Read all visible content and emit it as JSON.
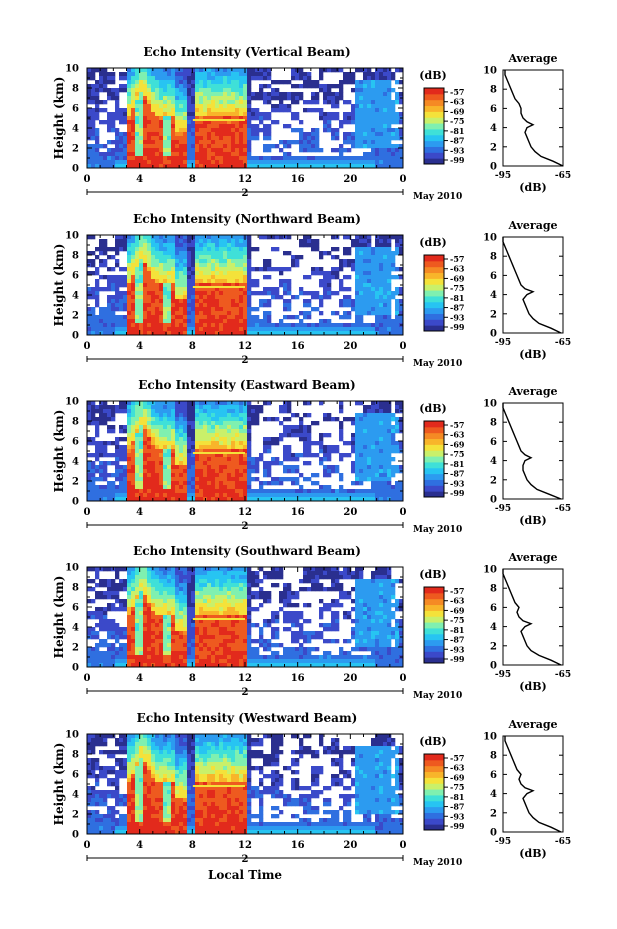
{
  "figure": {
    "xlabel": "Local Time",
    "date_label": "May 2010",
    "day_label": "2",
    "colorbar_unit": "(dB)",
    "colorbar_ticks": [
      "-57",
      "-63",
      "-69",
      "-75",
      "-81",
      "-87",
      "-93",
      "-99"
    ],
    "colormap": [
      "#2a2f8f",
      "#3b49c9",
      "#2f6fe0",
      "#2c9bf0",
      "#27c4f2",
      "#3fe0d8",
      "#7ff0b0",
      "#c9f06a",
      "#f4e23a",
      "#f8b52a",
      "#f58a24",
      "#ee5a1f",
      "#e22a1c"
    ]
  },
  "chart_data": [
    {
      "type": "heatmap",
      "title": "Echo Intensity (Vertical Beam)",
      "xlabel": "Local Time",
      "ylabel": "Height (km)",
      "xlim": [
        0,
        24
      ],
      "ylim": [
        0,
        10
      ],
      "x_ticks": [
        "0",
        "4",
        "8",
        "12",
        "16",
        "20",
        "0"
      ],
      "y_ticks": [
        "0",
        "2",
        "4",
        "6",
        "8",
        "10"
      ],
      "zlim": [
        -99,
        -57
      ],
      "profile": {
        "title": "Average",
        "xlabel": "(dB)",
        "xlim": [
          -95,
          -65
        ],
        "x_ticks": [
          "-95",
          "-65"
        ],
        "heights": [
          0,
          0.5,
          1,
          1.5,
          2,
          2.5,
          3,
          3.5,
          4,
          4.3,
          4.6,
          5,
          5.5,
          6,
          6.5,
          7,
          7.5,
          8,
          8.5,
          9,
          9.5,
          10
        ],
        "values": [
          -65,
          -70,
          -76,
          -79,
          -81,
          -82,
          -83,
          -84,
          -83,
          -80,
          -83,
          -85,
          -86,
          -86,
          -87,
          -89,
          -90,
          -91,
          -92,
          -93,
          -94,
          -94
        ]
      }
    },
    {
      "type": "heatmap",
      "title": "Echo Intensity (Northward Beam)",
      "xlabel": "Local Time",
      "ylabel": "Height (km)",
      "xlim": [
        0,
        24
      ],
      "ylim": [
        0,
        10
      ],
      "x_ticks": [
        "0",
        "4",
        "8",
        "12",
        "16",
        "20",
        "0"
      ],
      "y_ticks": [
        "0",
        "2",
        "4",
        "6",
        "8",
        "10"
      ],
      "zlim": [
        -99,
        -57
      ],
      "profile": {
        "title": "Average",
        "xlabel": "(dB)",
        "xlim": [
          -95,
          -65
        ],
        "x_ticks": [
          "-95",
          "-65"
        ],
        "heights": [
          0,
          0.5,
          1,
          1.5,
          2,
          2.5,
          3,
          3.5,
          4,
          4.3,
          4.6,
          5,
          5.5,
          6,
          6.5,
          7,
          7.5,
          8,
          8.5,
          9,
          9.5,
          10
        ],
        "values": [
          -66,
          -71,
          -77,
          -80,
          -82,
          -83,
          -84,
          -85,
          -83,
          -80,
          -84,
          -86,
          -87,
          -88,
          -89,
          -90,
          -91,
          -92,
          -93,
          -94,
          -95,
          -95
        ]
      }
    },
    {
      "type": "heatmap",
      "title": "Echo Intensity (Eastward Beam)",
      "xlabel": "Local Time",
      "ylabel": "Height (km)",
      "xlim": [
        0,
        24
      ],
      "ylim": [
        0,
        10
      ],
      "x_ticks": [
        "0",
        "4",
        "8",
        "12",
        "16",
        "20",
        "0"
      ],
      "y_ticks": [
        "0",
        "2",
        "4",
        "6",
        "8",
        "10"
      ],
      "zlim": [
        -99,
        -57
      ],
      "profile": {
        "title": "Average",
        "xlabel": "(dB)",
        "xlim": [
          -95,
          -65
        ],
        "x_ticks": [
          "-95",
          "-65"
        ],
        "heights": [
          0,
          0.5,
          1,
          1.5,
          2,
          2.5,
          3,
          3.5,
          4,
          4.3,
          4.6,
          5,
          5.5,
          6,
          6.5,
          7,
          7.5,
          8,
          8.5,
          9,
          9.5,
          10
        ],
        "values": [
          -66,
          -72,
          -78,
          -81,
          -83,
          -84,
          -85,
          -85,
          -84,
          -81,
          -84,
          -86,
          -87,
          -88,
          -89,
          -90,
          -91,
          -92,
          -93,
          -94,
          -95,
          -95
        ]
      }
    },
    {
      "type": "heatmap",
      "title": "Echo Intensity (Southward Beam)",
      "xlabel": "Local Time",
      "ylabel": "Height (km)",
      "xlim": [
        0,
        24
      ],
      "ylim": [
        0,
        10
      ],
      "x_ticks": [
        "0",
        "4",
        "8",
        "12",
        "16",
        "20",
        "0"
      ],
      "y_ticks": [
        "0",
        "2",
        "4",
        "6",
        "8",
        "10"
      ],
      "zlim": [
        -99,
        -57
      ],
      "profile": {
        "title": "Average",
        "xlabel": "(dB)",
        "xlim": [
          -95,
          -65
        ],
        "x_ticks": [
          "-95",
          "-65"
        ],
        "heights": [
          0,
          0.5,
          1,
          1.5,
          2,
          2.5,
          3,
          3.5,
          4,
          4.3,
          4.6,
          5,
          5.5,
          6,
          6.5,
          7,
          7.5,
          8,
          8.5,
          9,
          9.5,
          10
        ],
        "values": [
          -66,
          -71,
          -77,
          -81,
          -83,
          -84,
          -85,
          -86,
          -84,
          -81,
          -85,
          -87,
          -88,
          -87,
          -89,
          -90,
          -91,
          -92,
          -93,
          -94,
          -95,
          -95
        ]
      }
    },
    {
      "type": "heatmap",
      "title": "Echo Intensity (Westward Beam)",
      "xlabel": "Local Time",
      "ylabel": "Height (km)",
      "xlim": [
        0,
        24
      ],
      "ylim": [
        0,
        10
      ],
      "x_ticks": [
        "0",
        "4",
        "8",
        "12",
        "16",
        "20",
        "0"
      ],
      "y_ticks": [
        "0",
        "2",
        "4",
        "6",
        "8",
        "10"
      ],
      "zlim": [
        -99,
        -57
      ],
      "profile": {
        "title": "Average",
        "xlabel": "(dB)",
        "xlim": [
          -95,
          -65
        ],
        "x_ticks": [
          "-95",
          "-65"
        ],
        "heights": [
          0,
          0.5,
          1,
          1.5,
          2,
          2.5,
          3,
          3.5,
          4,
          4.3,
          4.6,
          5,
          5.5,
          6,
          6.5,
          7,
          7.5,
          8,
          8.5,
          9,
          9.5,
          10
        ],
        "values": [
          -66,
          -71,
          -77,
          -80,
          -82,
          -83,
          -84,
          -85,
          -83,
          -80,
          -84,
          -86,
          -87,
          -86,
          -88,
          -89,
          -90,
          -91,
          -92,
          -93,
          -94,
          -94
        ]
      }
    }
  ]
}
